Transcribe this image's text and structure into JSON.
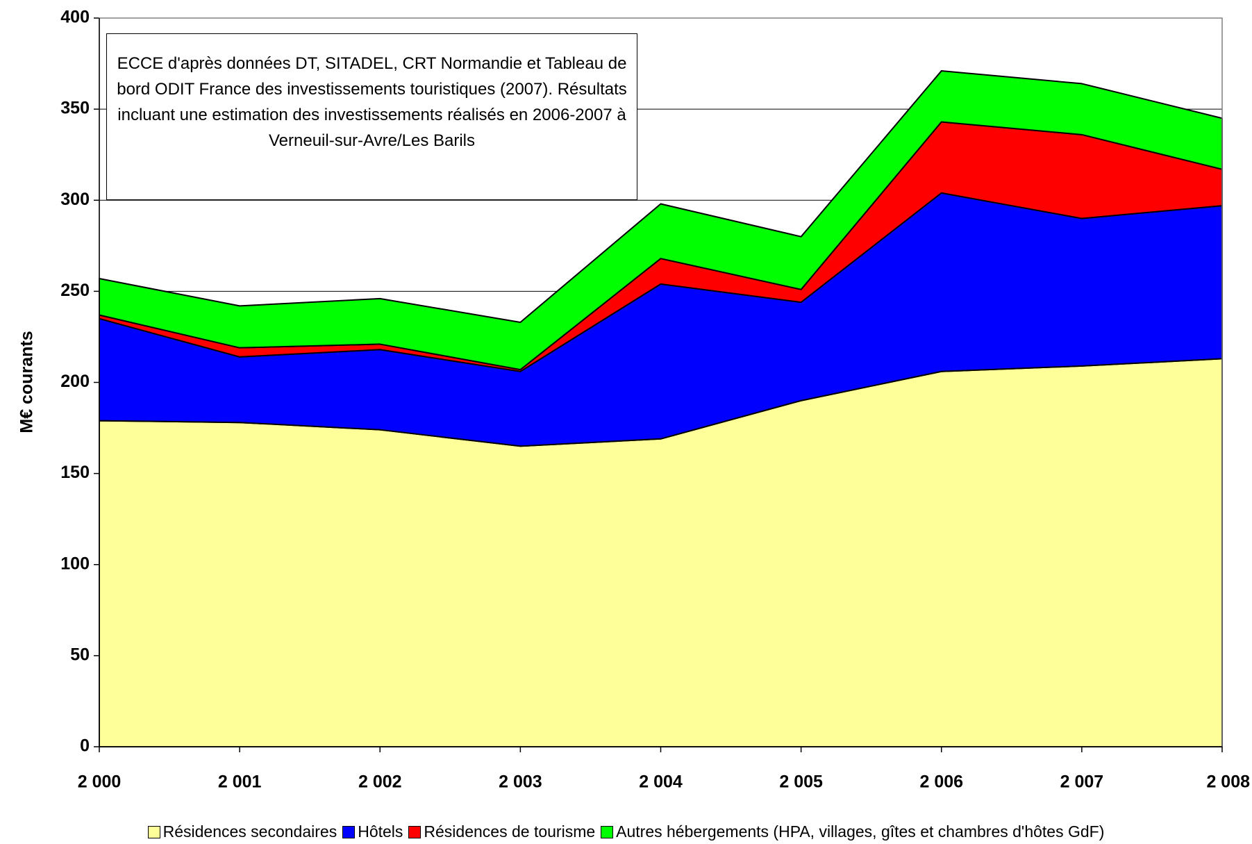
{
  "chart_data": {
    "type": "stacked_area",
    "y_label": "M€ courants",
    "annotation": "ECCE d'après données DT, SITADEL, CRT Normandie et Tableau de bord ODIT France des investissements touristiques (2007). Résultats incluant une estimation des investissements réalisés en 2006-2007 à Verneuil-sur-Avre/Les Barils",
    "categories": [
      "2 000",
      "2 001",
      "2 002",
      "2 003",
      "2 004",
      "2 005",
      "2 006",
      "2 007",
      "2 008"
    ],
    "series": [
      {
        "name": "Résidences secondaires",
        "color": "#ffff99",
        "values": [
          179,
          178,
          174,
          165,
          169,
          190,
          206,
          209,
          213
        ]
      },
      {
        "name": "Hôtels",
        "color": "#0000ff",
        "values": [
          56,
          36,
          44,
          41,
          85,
          54,
          98,
          81,
          84
        ]
      },
      {
        "name": "Résidences de tourisme",
        "color": "#ff0000",
        "values": [
          2,
          5,
          3,
          1,
          14,
          7,
          39,
          46,
          20
        ]
      },
      {
        "name": "Autres hébergements (HPA, villages, gîtes et chambres d'hôtes GdF)",
        "color": "#00ff00",
        "values": [
          20,
          23,
          25,
          26,
          30,
          29,
          28,
          28,
          28
        ]
      }
    ],
    "ylim": [
      0,
      400
    ],
    "yticks": [
      0,
      50,
      100,
      150,
      200,
      250,
      300,
      350,
      400
    ],
    "grid": true,
    "legend": "bottom"
  }
}
